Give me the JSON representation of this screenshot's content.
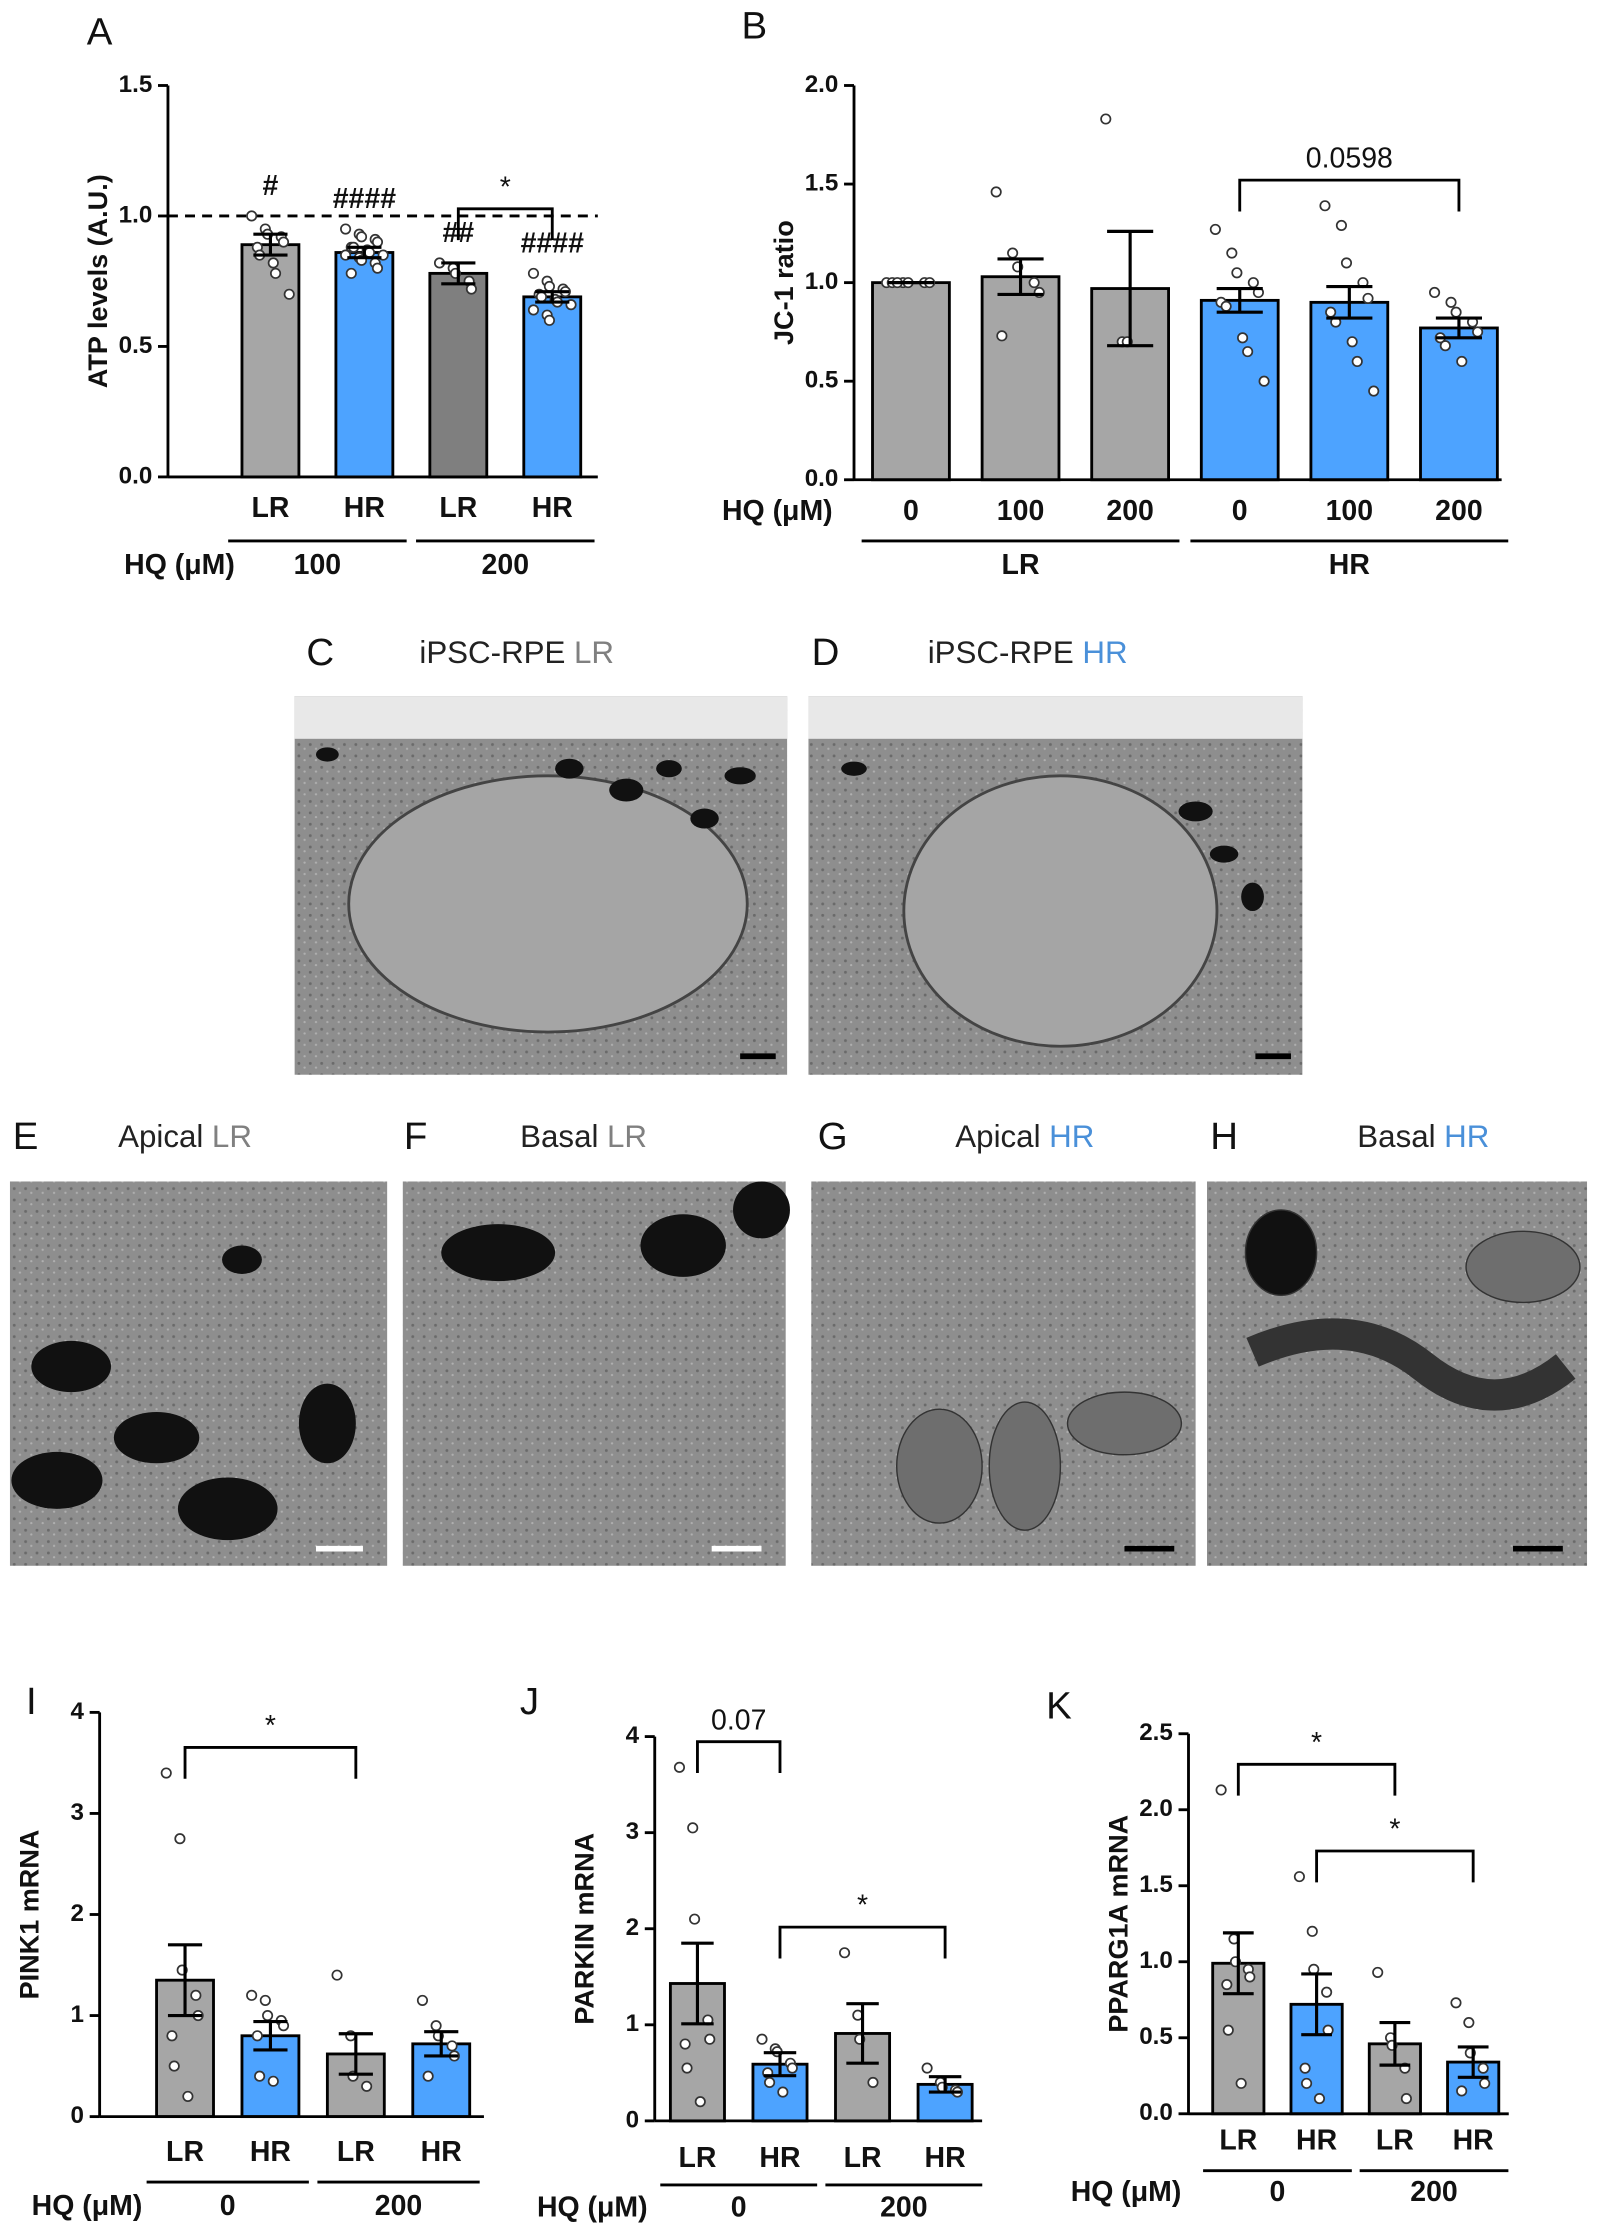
{
  "chart_data": [
    {
      "type": "bar",
      "panel": "A",
      "ylabel": "ATP levels (A.U.)",
      "ylim": [
        0,
        1.5
      ],
      "yticks": [
        {
          "value": 0,
          "label": "0.0"
        },
        0.5,
        {
          "value": 1,
          "label": "1.0"
        },
        1.5
      ],
      "categories": [
        "LR",
        "HR",
        "LR",
        "HR"
      ],
      "colors": [
        "#a6a6a6",
        "#4da3ff",
        "#7f7f7f",
        "#4da3ff"
      ],
      "values": [
        0.89,
        0.86,
        0.78,
        0.69
      ],
      "errors": [
        0.04,
        0.02,
        0.04,
        0.02
      ],
      "points": [
        [
          1.0,
          0.95,
          0.93,
          0.92,
          0.9,
          0.88,
          0.85,
          0.82,
          0.78,
          0.7
        ],
        [
          0.95,
          0.93,
          0.92,
          0.91,
          0.9,
          0.88,
          0.88,
          0.87,
          0.86,
          0.85,
          0.85,
          0.84,
          0.83,
          0.82,
          0.8,
          0.78
        ],
        [
          0.82,
          0.8,
          0.78,
          0.75,
          0.72
        ],
        [
          0.78,
          0.75,
          0.73,
          0.72,
          0.71,
          0.7,
          0.69,
          0.68,
          0.67,
          0.66,
          0.64,
          0.62,
          0.6
        ]
      ],
      "annotations": [
        "#",
        "####",
        "##",
        "####"
      ],
      "ref_line": 1.0,
      "row_label": "HQ (μM)",
      "row_label_on": "groups",
      "groups": [
        {
          "label": "100",
          "from": 0,
          "to": 1
        },
        {
          "label": "200",
          "from": 2,
          "to": 3
        }
      ],
      "brackets": [
        {
          "label": "*",
          "from": 2,
          "to": 3
        }
      ]
    },
    {
      "type": "bar",
      "panel": "B",
      "ylabel": "JC-1 ratio",
      "ylim": [
        0,
        2.0
      ],
      "yticks": [
        {
          "value": 0,
          "label": "0.0"
        },
        0.5,
        {
          "value": 1,
          "label": "1.0"
        },
        1.5,
        {
          "value": 2,
          "label": "2.0"
        }
      ],
      "categories": [
        "0",
        "100",
        "200",
        "0",
        "100",
        "200"
      ],
      "colors": [
        "#a6a6a6",
        "#a6a6a6",
        "#a6a6a6",
        "#4da3ff",
        "#4da3ff",
        "#4da3ff"
      ],
      "values": [
        1.0,
        1.03,
        0.97,
        0.91,
        0.9,
        0.77
      ],
      "errors": [
        0,
        0.09,
        0.29,
        0.06,
        0.08,
        0.05
      ],
      "points": [
        [
          1,
          1,
          1,
          1,
          1,
          1,
          1
        ],
        [
          1.46,
          1.15,
          1.08,
          1.0,
          0.95,
          0.73
        ],
        [
          1.83,
          0.7,
          0.7
        ],
        [
          1.27,
          1.15,
          1.05,
          1.0,
          0.95,
          0.9,
          0.88,
          0.72,
          0.65,
          0.5
        ],
        [
          1.39,
          1.29,
          1.1,
          1.0,
          0.92,
          0.85,
          0.8,
          0.7,
          0.6,
          0.45
        ],
        [
          0.95,
          0.9,
          0.85,
          0.8,
          0.75,
          0.72,
          0.68,
          0.6
        ]
      ],
      "row_label": "HQ (μM)",
      "row_label_on": "categories",
      "groups": [
        {
          "label": "LR",
          "from": 0,
          "to": 2
        },
        {
          "label": "HR",
          "from": 3,
          "to": 5
        }
      ],
      "brackets": [
        {
          "label": "0.0598",
          "from": 3,
          "to": 5
        }
      ]
    },
    {
      "type": "bar",
      "panel": "I",
      "ylabel": "PINK1 mRNA",
      "ylim": [
        0,
        4
      ],
      "yticks": [
        0,
        1,
        2,
        3,
        4
      ],
      "categories": [
        "LR",
        "HR",
        "LR",
        "HR"
      ],
      "colors": [
        "#a6a6a6",
        "#4da3ff",
        "#a6a6a6",
        "#4da3ff"
      ],
      "values": [
        1.35,
        0.8,
        0.62,
        0.72
      ],
      "errors": [
        0.35,
        0.14,
        0.2,
        0.12
      ],
      "points": [
        [
          3.4,
          2.75,
          1.45,
          1.2,
          1.0,
          0.8,
          0.5,
          0.2
        ],
        [
          1.2,
          1.15,
          1.0,
          0.95,
          0.9,
          0.8,
          0.4,
          0.35
        ],
        [
          1.4,
          0.8,
          0.4,
          0.3
        ],
        [
          1.15,
          0.9,
          0.8,
          0.7,
          0.6,
          0.4
        ]
      ],
      "row_label": "HQ (μM)",
      "row_label_on": "groups",
      "groups": [
        {
          "label": "0",
          "from": 0,
          "to": 1
        },
        {
          "label": "200",
          "from": 2,
          "to": 3
        }
      ],
      "brackets": [
        {
          "label": "*",
          "from": 0,
          "to": 2
        }
      ]
    },
    {
      "type": "bar",
      "panel": "J",
      "ylabel": "PARKIN mRNA",
      "ylim": [
        0,
        4
      ],
      "yticks": [
        0,
        1,
        2,
        3,
        4
      ],
      "categories": [
        "LR",
        "HR",
        "LR",
        "HR"
      ],
      "colors": [
        "#a6a6a6",
        "#4da3ff",
        "#a6a6a6",
        "#4da3ff"
      ],
      "values": [
        1.43,
        0.59,
        0.91,
        0.38
      ],
      "errors": [
        0.42,
        0.12,
        0.31,
        0.08
      ],
      "points": [
        [
          3.68,
          3.05,
          2.1,
          1.05,
          0.85,
          0.8,
          0.55,
          0.2
        ],
        [
          0.85,
          0.75,
          0.72,
          0.6,
          0.55,
          0.5,
          0.4,
          0.3
        ],
        [
          1.75,
          1.1,
          0.85,
          0.4
        ],
        [
          0.55,
          0.4,
          0.35,
          0.32,
          0.3
        ]
      ],
      "row_label": "HQ (μM)",
      "row_label_on": "groups",
      "groups": [
        {
          "label": "0",
          "from": 0,
          "to": 1
        },
        {
          "label": "200",
          "from": 2,
          "to": 3
        }
      ],
      "brackets": [
        {
          "label": "0.07",
          "from": 0,
          "to": 1
        },
        {
          "label": "*",
          "from": 1,
          "to": 3
        }
      ]
    },
    {
      "type": "bar",
      "panel": "K",
      "ylabel": "PPARG1A mRNA",
      "ylim": [
        0,
        2.5
      ],
      "yticks": [
        {
          "value": 0,
          "label": "0.0"
        },
        0.5,
        {
          "value": 1,
          "label": "1.0"
        },
        1.5,
        {
          "value": 2,
          "label": "2.0"
        },
        2.5
      ],
      "categories": [
        "LR",
        "HR",
        "LR",
        "HR"
      ],
      "colors": [
        "#a6a6a6",
        "#4da3ff",
        "#a6a6a6",
        "#4da3ff"
      ],
      "values": [
        0.99,
        0.72,
        0.46,
        0.34
      ],
      "errors": [
        0.2,
        0.2,
        0.14,
        0.1
      ],
      "points": [
        [
          2.13,
          1.15,
          1.0,
          0.95,
          0.9,
          0.85,
          0.55,
          0.2
        ],
        [
          1.56,
          1.2,
          0.95,
          0.8,
          0.55,
          0.3,
          0.2,
          0.1
        ],
        [
          0.93,
          0.5,
          0.45,
          0.3,
          0.1
        ],
        [
          0.73,
          0.6,
          0.4,
          0.3,
          0.2,
          0.15
        ]
      ],
      "row_label": "HQ (μM)",
      "row_label_on": "groups",
      "groups": [
        {
          "label": "0",
          "from": 0,
          "to": 1
        },
        {
          "label": "200",
          "from": 2,
          "to": 3
        }
      ],
      "brackets": [
        {
          "label": "*",
          "from": 0,
          "to": 2
        },
        {
          "label": "*",
          "from": 1,
          "to": 3
        }
      ]
    }
  ],
  "images": [
    {
      "letter": "C",
      "title": "iPSC-RPE",
      "group": "LR",
      "group_color": "#808080"
    },
    {
      "letter": "D",
      "title": "iPSC-RPE",
      "group": "HR",
      "group_color": "#4a90d9"
    },
    {
      "letter": "E",
      "title": "Apical",
      "group": "LR",
      "group_color": "#808080"
    },
    {
      "letter": "F",
      "title": "Basal",
      "group": "LR",
      "group_color": "#808080"
    },
    {
      "letter": "G",
      "title": "Apical",
      "group": "HR",
      "group_color": "#4a90d9"
    },
    {
      "letter": "H",
      "title": "Basal",
      "group": "HR",
      "group_color": "#4a90d9"
    }
  ]
}
